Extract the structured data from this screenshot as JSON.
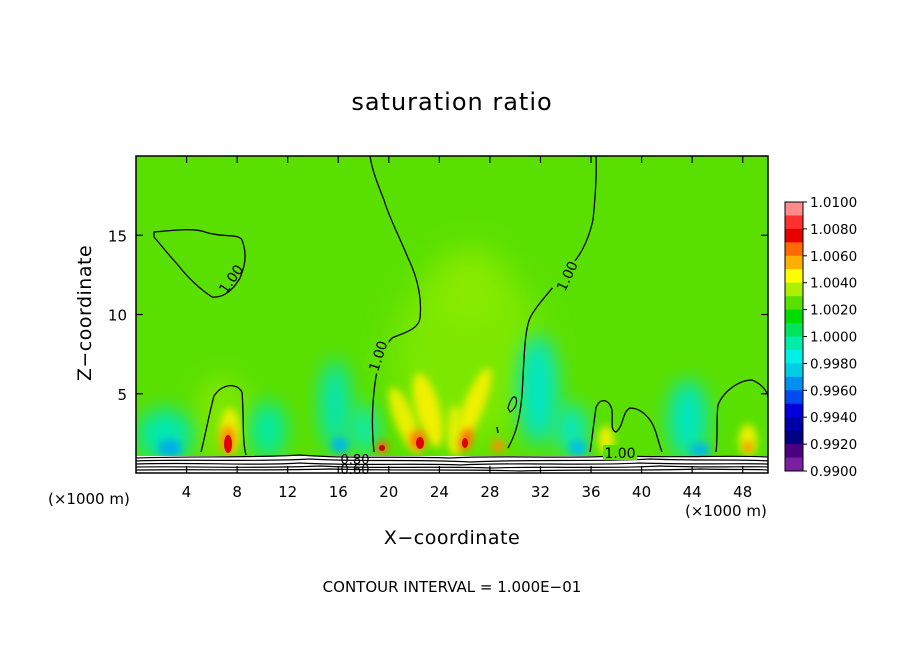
{
  "chart_data": {
    "type": "heatmap",
    "title": "saturation ratio",
    "xlabel": "X−coordinate",
    "ylabel": "Z−coordinate",
    "x_unit": "(×1000 m)",
    "y_unit": "(×1000 m)",
    "xlim": [
      0,
      50
    ],
    "ylim": [
      0,
      20
    ],
    "x_ticks": [
      4,
      8,
      12,
      16,
      20,
      24,
      28,
      32,
      36,
      40,
      44,
      48
    ],
    "y_ticks": [
      5,
      10,
      15
    ],
    "colorbar": {
      "levels": [
        "1.0100",
        "1.0080",
        "1.0060",
        "1.0040",
        "1.0020",
        "1.0000",
        "0.9980",
        "0.9960",
        "0.9940",
        "0.9920",
        "0.9900"
      ],
      "bin_colors": [
        "#ff8c8c",
        "#ff3030",
        "#e60000",
        "#ff6a00",
        "#ffb000",
        "#ffff00",
        "#aaf000",
        "#5ae000",
        "#00dc00",
        "#00e35a",
        "#00eca8",
        "#00f0e8",
        "#00cde6",
        "#0090f0",
        "#0048f0",
        "#0000dc",
        "#0000a8",
        "#000082",
        "#4b0082",
        "#7820a0"
      ],
      "background_color": "#5ae000"
    },
    "contour_labels": [
      "1.00",
      "1.00",
      "1.00",
      "1.00",
      "0.80",
      "0.60"
    ],
    "footnote": "CONTOUR INTERVAL = 1.000E−01"
  }
}
